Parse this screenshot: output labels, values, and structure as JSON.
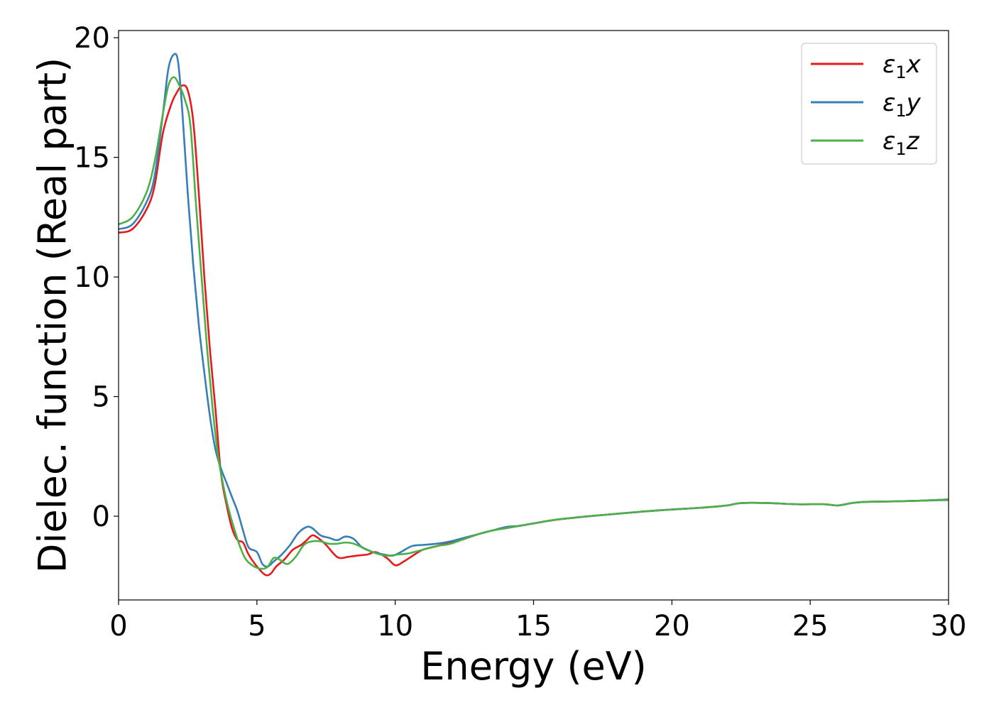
{
  "chart_data": {
    "type": "line",
    "title": "",
    "xlabel": "Energy (eV)",
    "ylabel": "Dielec. function (Real part)",
    "xlim": [
      0,
      30
    ],
    "ylim": [
      -3.5,
      20.3
    ],
    "xticks": [
      0,
      5,
      10,
      15,
      20,
      25,
      30
    ],
    "yticks": [
      0,
      5,
      10,
      15,
      20
    ],
    "grid": false,
    "legend_position": "top-right",
    "series": [
      {
        "name": "ε1x",
        "legend_main": "ε",
        "legend_sub": "1",
        "legend_suffix": "x",
        "color": "#e41a1c",
        "points": [
          [
            0,
            11.85
          ],
          [
            0.5,
            12.0
          ],
          [
            1.0,
            12.8
          ],
          [
            1.3,
            13.8
          ],
          [
            1.6,
            16.0
          ],
          [
            1.9,
            17.2
          ],
          [
            2.1,
            17.7
          ],
          [
            2.3,
            18.0
          ],
          [
            2.5,
            17.8
          ],
          [
            2.7,
            16.5
          ],
          [
            2.9,
            13.5
          ],
          [
            3.1,
            10.0
          ],
          [
            3.3,
            7.0
          ],
          [
            3.5,
            4.5
          ],
          [
            3.7,
            1.8
          ],
          [
            3.9,
            0.5
          ],
          [
            4.1,
            -0.5
          ],
          [
            4.3,
            -1.0
          ],
          [
            4.5,
            -1.1
          ],
          [
            4.7,
            -1.6
          ],
          [
            5.0,
            -2.1
          ],
          [
            5.3,
            -2.45
          ],
          [
            5.5,
            -2.4
          ],
          [
            5.7,
            -2.1
          ],
          [
            6.0,
            -1.8
          ],
          [
            6.3,
            -1.4
          ],
          [
            6.6,
            -1.2
          ],
          [
            6.8,
            -1.0
          ],
          [
            7.0,
            -0.8
          ],
          [
            7.2,
            -0.9
          ],
          [
            7.5,
            -1.2
          ],
          [
            7.8,
            -1.6
          ],
          [
            8.0,
            -1.75
          ],
          [
            8.3,
            -1.7
          ],
          [
            8.6,
            -1.65
          ],
          [
            9.0,
            -1.6
          ],
          [
            9.3,
            -1.5
          ],
          [
            9.7,
            -1.75
          ],
          [
            10.0,
            -2.05
          ],
          [
            10.3,
            -1.9
          ],
          [
            10.7,
            -1.6
          ],
          [
            11.0,
            -1.4
          ],
          [
            11.5,
            -1.25
          ],
          [
            12.0,
            -1.1
          ],
          [
            12.5,
            -0.95
          ],
          [
            13.0,
            -0.75
          ],
          [
            13.5,
            -0.6
          ],
          [
            14.0,
            -0.5
          ],
          [
            14.5,
            -0.4
          ],
          [
            15.0,
            -0.3
          ],
          [
            15.5,
            -0.2
          ],
          [
            16.0,
            -0.12
          ],
          [
            17.0,
            0.0
          ],
          [
            18.0,
            0.1
          ],
          [
            19.0,
            0.2
          ],
          [
            20.0,
            0.28
          ],
          [
            21.0,
            0.35
          ],
          [
            22.0,
            0.45
          ],
          [
            22.5,
            0.55
          ],
          [
            23.5,
            0.55
          ],
          [
            24.5,
            0.5
          ],
          [
            25.5,
            0.5
          ],
          [
            26.0,
            0.45
          ],
          [
            26.5,
            0.55
          ],
          [
            27.0,
            0.6
          ],
          [
            28.0,
            0.62
          ],
          [
            29.0,
            0.65
          ],
          [
            30.0,
            0.7
          ]
        ]
      },
      {
        "name": "ε1y",
        "legend_main": "ε",
        "legend_sub": "1",
        "legend_suffix": "y",
        "color": "#377eb8",
        "points": [
          [
            0,
            12.0
          ],
          [
            0.5,
            12.2
          ],
          [
            1.0,
            13.1
          ],
          [
            1.3,
            14.2
          ],
          [
            1.6,
            16.8
          ],
          [
            1.8,
            18.7
          ],
          [
            2.0,
            19.3
          ],
          [
            2.15,
            19.0
          ],
          [
            2.3,
            17.0
          ],
          [
            2.5,
            13.5
          ],
          [
            2.7,
            10.5
          ],
          [
            2.9,
            8.0
          ],
          [
            3.1,
            6.0
          ],
          [
            3.3,
            4.2
          ],
          [
            3.5,
            2.8
          ],
          [
            3.7,
            2.0
          ],
          [
            3.9,
            1.4
          ],
          [
            4.1,
            0.8
          ],
          [
            4.3,
            0.2
          ],
          [
            4.5,
            -0.6
          ],
          [
            4.7,
            -1.3
          ],
          [
            5.0,
            -1.5
          ],
          [
            5.2,
            -2.0
          ],
          [
            5.4,
            -2.1
          ],
          [
            5.6,
            -1.9
          ],
          [
            5.9,
            -1.6
          ],
          [
            6.2,
            -1.2
          ],
          [
            6.5,
            -0.7
          ],
          [
            6.8,
            -0.45
          ],
          [
            7.0,
            -0.5
          ],
          [
            7.3,
            -0.8
          ],
          [
            7.6,
            -0.9
          ],
          [
            7.9,
            -1.0
          ],
          [
            8.2,
            -0.85
          ],
          [
            8.5,
            -0.95
          ],
          [
            8.8,
            -1.3
          ],
          [
            9.2,
            -1.5
          ],
          [
            9.6,
            -1.6
          ],
          [
            9.9,
            -1.65
          ],
          [
            10.2,
            -1.5
          ],
          [
            10.6,
            -1.25
          ],
          [
            11.0,
            -1.2
          ],
          [
            11.5,
            -1.15
          ],
          [
            12.0,
            -1.05
          ],
          [
            12.5,
            -0.9
          ],
          [
            13.0,
            -0.75
          ],
          [
            13.5,
            -0.6
          ],
          [
            14.0,
            -0.45
          ],
          [
            14.5,
            -0.4
          ],
          [
            15.0,
            -0.3
          ],
          [
            15.5,
            -0.2
          ],
          [
            16.0,
            -0.12
          ],
          [
            17.0,
            0.0
          ],
          [
            18.0,
            0.1
          ],
          [
            19.0,
            0.2
          ],
          [
            20.0,
            0.28
          ],
          [
            21.0,
            0.35
          ],
          [
            22.0,
            0.45
          ],
          [
            22.5,
            0.55
          ],
          [
            23.5,
            0.55
          ],
          [
            24.5,
            0.5
          ],
          [
            25.5,
            0.5
          ],
          [
            26.0,
            0.45
          ],
          [
            26.5,
            0.55
          ],
          [
            27.0,
            0.6
          ],
          [
            28.0,
            0.62
          ],
          [
            29.0,
            0.65
          ],
          [
            30.0,
            0.68
          ]
        ]
      },
      {
        "name": "ε1z",
        "legend_main": "ε",
        "legend_sub": "1",
        "legend_suffix": "z",
        "color": "#4daf4a",
        "points": [
          [
            0,
            12.2
          ],
          [
            0.5,
            12.5
          ],
          [
            1.0,
            13.5
          ],
          [
            1.3,
            14.8
          ],
          [
            1.6,
            16.8
          ],
          [
            1.8,
            18.0
          ],
          [
            2.0,
            18.35
          ],
          [
            2.2,
            18.0
          ],
          [
            2.4,
            17.4
          ],
          [
            2.6,
            16.3
          ],
          [
            2.8,
            13.0
          ],
          [
            3.0,
            10.0
          ],
          [
            3.2,
            7.0
          ],
          [
            3.4,
            4.5
          ],
          [
            3.6,
            2.5
          ],
          [
            3.8,
            1.2
          ],
          [
            4.0,
            0.2
          ],
          [
            4.2,
            -0.6
          ],
          [
            4.4,
            -1.3
          ],
          [
            4.6,
            -1.8
          ],
          [
            4.9,
            -2.1
          ],
          [
            5.2,
            -2.2
          ],
          [
            5.4,
            -2.1
          ],
          [
            5.6,
            -1.75
          ],
          [
            5.8,
            -1.8
          ],
          [
            6.1,
            -2.0
          ],
          [
            6.4,
            -1.7
          ],
          [
            6.7,
            -1.2
          ],
          [
            7.0,
            -1.05
          ],
          [
            7.3,
            -1.05
          ],
          [
            7.6,
            -1.15
          ],
          [
            7.9,
            -1.15
          ],
          [
            8.2,
            -1.1
          ],
          [
            8.5,
            -1.15
          ],
          [
            8.9,
            -1.35
          ],
          [
            9.3,
            -1.55
          ],
          [
            9.7,
            -1.65
          ],
          [
            10.1,
            -1.6
          ],
          [
            10.5,
            -1.55
          ],
          [
            11.0,
            -1.4
          ],
          [
            11.5,
            -1.25
          ],
          [
            12.0,
            -1.15
          ],
          [
            12.5,
            -0.95
          ],
          [
            13.0,
            -0.75
          ],
          [
            13.5,
            -0.6
          ],
          [
            14.0,
            -0.5
          ],
          [
            14.5,
            -0.4
          ],
          [
            15.0,
            -0.3
          ],
          [
            15.5,
            -0.2
          ],
          [
            16.0,
            -0.12
          ],
          [
            17.0,
            0.0
          ],
          [
            18.0,
            0.1
          ],
          [
            19.0,
            0.2
          ],
          [
            20.0,
            0.28
          ],
          [
            21.0,
            0.35
          ],
          [
            22.0,
            0.45
          ],
          [
            22.5,
            0.55
          ],
          [
            23.5,
            0.55
          ],
          [
            24.5,
            0.5
          ],
          [
            25.5,
            0.5
          ],
          [
            26.0,
            0.45
          ],
          [
            26.5,
            0.55
          ],
          [
            27.0,
            0.6
          ],
          [
            28.0,
            0.62
          ],
          [
            29.0,
            0.65
          ],
          [
            30.0,
            0.7
          ]
        ]
      }
    ]
  }
}
